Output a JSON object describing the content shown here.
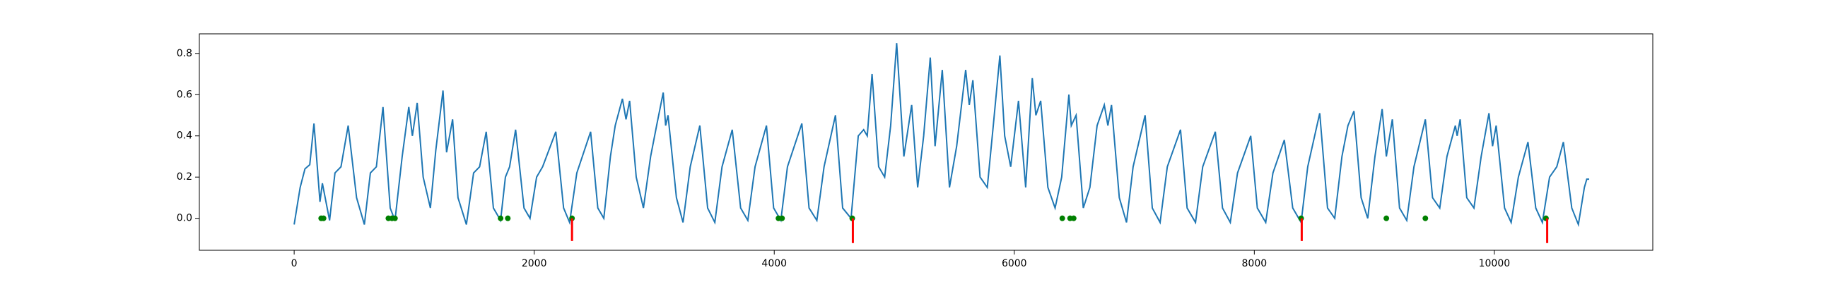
{
  "chart_data": {
    "type": "line",
    "xlim": [
      -790,
      11320
    ],
    "ylim": [
      -0.155,
      0.895
    ],
    "xticks": [
      0,
      2000,
      4000,
      6000,
      8000,
      10000
    ],
    "yticks": [
      {
        "value": 0,
        "label": "0.0"
      },
      0.2,
      0.4,
      0.6,
      0.8
    ],
    "series": [
      {
        "style": "line",
        "color": "#1f77b4",
        "x": [
          0,
          50,
          90,
          130,
          165,
          215,
          235,
          295,
          340,
          390,
          450,
          520,
          585,
          635,
          685,
          740,
          800,
          840,
          900,
          955,
          985,
          1025,
          1075,
          1135,
          1180,
          1240,
          1270,
          1320,
          1365,
          1435,
          1495,
          1545,
          1600,
          1660,
          1720,
          1760,
          1795,
          1845,
          1915,
          1965,
          2020,
          2070,
          2180,
          2245,
          2295,
          2355,
          2470,
          2530,
          2580,
          2635,
          2675,
          2735,
          2765,
          2795,
          2850,
          2910,
          2970,
          3020,
          3075,
          3095,
          3115,
          3185,
          3240,
          3300,
          3380,
          3445,
          3505,
          3565,
          3650,
          3720,
          3780,
          3840,
          3935,
          3995,
          4055,
          4110,
          4230,
          4290,
          4355,
          4415,
          4510,
          4570,
          4640,
          4700,
          4745,
          4775,
          4815,
          4870,
          4920,
          4970,
          5020,
          5080,
          5145,
          5195,
          5245,
          5300,
          5340,
          5400,
          5460,
          5520,
          5595,
          5625,
          5655,
          5715,
          5775,
          5825,
          5880,
          5920,
          5970,
          6035,
          6095,
          6150,
          6180,
          6220,
          6280,
          6340,
          6395,
          6455,
          6475,
          6515,
          6575,
          6630,
          6690,
          6750,
          6780,
          6810,
          6875,
          6935,
          6990,
          7090,
          7150,
          7215,
          7275,
          7385,
          7440,
          7510,
          7570,
          7675,
          7735,
          7800,
          7860,
          7970,
          8025,
          8095,
          8155,
          8250,
          8320,
          8390,
          8445,
          8545,
          8610,
          8670,
          8730,
          8780,
          8830,
          8890,
          8945,
          9005,
          9065,
          9100,
          9150,
          9210,
          9270,
          9330,
          9425,
          9485,
          9545,
          9605,
          9675,
          9690,
          9715,
          9770,
          9830,
          9890,
          9955,
          9985,
          10015,
          10085,
          10140,
          10200,
          10280,
          10345,
          10400,
          10460,
          10520,
          10575,
          10645,
          10700,
          10750,
          10770,
          10790
        ],
        "values": [
          -0.03,
          0.15,
          0.24,
          0.26,
          0.46,
          0.08,
          0.17,
          -0.01,
          0.22,
          0.25,
          0.45,
          0.1,
          -0.03,
          0.22,
          0.25,
          0.54,
          0.05,
          -0.01,
          0.3,
          0.54,
          0.4,
          0.56,
          0.2,
          0.05,
          0.33,
          0.62,
          0.32,
          0.48,
          0.1,
          -0.03,
          0.22,
          0.25,
          0.42,
          0.05,
          -0.01,
          0.2,
          0.25,
          0.43,
          0.05,
          0.0,
          0.2,
          0.25,
          0.42,
          0.05,
          -0.02,
          0.22,
          0.42,
          0.05,
          0.0,
          0.3,
          0.45,
          0.58,
          0.48,
          0.57,
          0.2,
          0.05,
          0.3,
          0.45,
          0.61,
          0.45,
          0.5,
          0.1,
          -0.02,
          0.25,
          0.45,
          0.05,
          -0.02,
          0.25,
          0.43,
          0.05,
          -0.01,
          0.25,
          0.45,
          0.05,
          -0.01,
          0.25,
          0.46,
          0.05,
          -0.01,
          0.25,
          0.5,
          0.05,
          0.0,
          0.4,
          0.43,
          0.4,
          0.7,
          0.25,
          0.2,
          0.45,
          0.85,
          0.3,
          0.55,
          0.15,
          0.4,
          0.78,
          0.35,
          0.72,
          0.15,
          0.35,
          0.72,
          0.55,
          0.67,
          0.2,
          0.15,
          0.45,
          0.79,
          0.4,
          0.25,
          0.57,
          0.15,
          0.68,
          0.5,
          0.57,
          0.15,
          0.05,
          0.2,
          0.6,
          0.45,
          0.5,
          0.05,
          0.15,
          0.45,
          0.55,
          0.45,
          0.55,
          0.1,
          -0.02,
          0.25,
          0.5,
          0.05,
          -0.02,
          0.25,
          0.43,
          0.05,
          -0.02,
          0.25,
          0.42,
          0.05,
          -0.02,
          0.22,
          0.4,
          0.05,
          -0.02,
          0.22,
          0.38,
          0.05,
          -0.02,
          0.25,
          0.51,
          0.05,
          0.0,
          0.3,
          0.45,
          0.52,
          0.1,
          0.0,
          0.3,
          0.53,
          0.3,
          0.48,
          0.05,
          -0.01,
          0.25,
          0.48,
          0.1,
          0.05,
          0.3,
          0.45,
          0.4,
          0.48,
          0.1,
          0.05,
          0.3,
          0.51,
          0.35,
          0.45,
          0.05,
          -0.02,
          0.2,
          0.37,
          0.05,
          -0.02,
          0.2,
          0.25,
          0.37,
          0.05,
          -0.03,
          0.15,
          0.19,
          0.19
        ]
      },
      {
        "style": "dot",
        "color": "#008000",
        "x": [
          225,
          245,
          785,
          815,
          840,
          1720,
          1780,
          2315,
          4035,
          4065,
          4650,
          6400,
          6465,
          6495,
          8390,
          9100,
          9425,
          10430
        ],
        "values": [
          0,
          0,
          0,
          0,
          0,
          0,
          0,
          0,
          0,
          0,
          0,
          0,
          0,
          0,
          0,
          0,
          0,
          0
        ]
      },
      {
        "style": "vline",
        "color": "#ff0000",
        "x": [
          2315,
          4655,
          8395,
          10440
        ],
        "values": [
          -0.11,
          -0.12,
          -0.11,
          -0.12
        ]
      }
    ]
  }
}
